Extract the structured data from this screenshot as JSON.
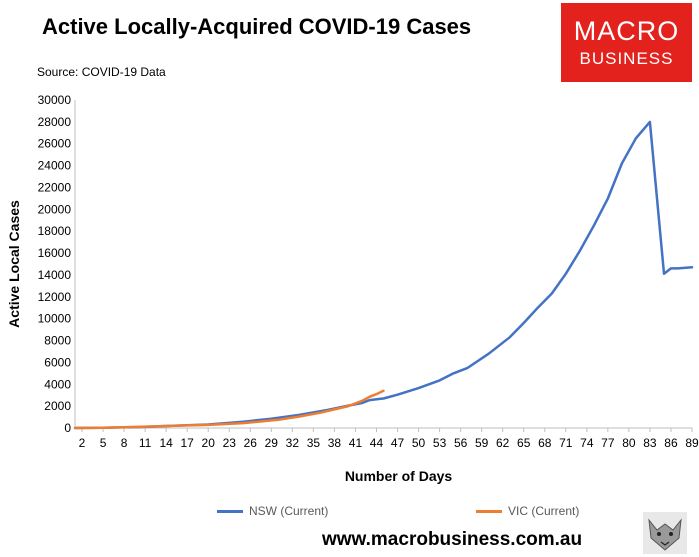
{
  "title": "Active Locally-Acquired COVID-19 Cases",
  "source": "Source: COVID-19 Data",
  "logo": {
    "line1": "MACRO",
    "line2": "BUSINESS",
    "color": "#e3221e"
  },
  "website": "www.macrobusiness.com.au",
  "chart_data": {
    "type": "line",
    "xlabel": "Number of Days",
    "ylabel": "Active Local Cases",
    "xlim": [
      1,
      89
    ],
    "ylim": [
      0,
      30000
    ],
    "y_ticks": [
      0,
      2000,
      4000,
      6000,
      8000,
      10000,
      12000,
      14000,
      16000,
      18000,
      20000,
      22000,
      24000,
      26000,
      28000,
      30000
    ],
    "x_ticks": [
      2,
      5,
      8,
      11,
      14,
      17,
      20,
      23,
      26,
      29,
      32,
      35,
      38,
      41,
      44,
      47,
      50,
      53,
      56,
      59,
      62,
      65,
      68,
      71,
      74,
      77,
      80,
      83,
      86,
      89
    ],
    "grid": "none",
    "legend_position": "bottom",
    "series": [
      {
        "name": "NSW (Current)",
        "color": "#4472c4",
        "x": [
          1,
          5,
          10,
          15,
          20,
          25,
          29,
          33,
          37,
          40,
          42,
          43,
          45,
          47,
          50,
          53,
          55,
          57,
          60,
          63,
          65,
          67,
          69,
          71,
          73,
          75,
          77,
          79,
          81,
          83,
          85,
          86,
          87,
          89
        ],
        "y": [
          0,
          20,
          80,
          200,
          320,
          580,
          850,
          1200,
          1650,
          2050,
          2300,
          2550,
          2700,
          3050,
          3650,
          4350,
          5000,
          5500,
          6800,
          8300,
          9600,
          11000,
          12300,
          14100,
          16200,
          18500,
          21000,
          24200,
          26500,
          28000,
          14100,
          14600,
          14600,
          14700
        ]
      },
      {
        "name": "VIC (Current)",
        "color": "#ed7d31",
        "x": [
          1,
          5,
          10,
          15,
          20,
          25,
          30,
          33,
          36,
          38,
          40,
          41,
          42,
          43,
          44,
          45
        ],
        "y": [
          0,
          30,
          100,
          200,
          280,
          450,
          750,
          1050,
          1400,
          1700,
          2000,
          2250,
          2500,
          2850,
          3100,
          3400
        ]
      }
    ]
  }
}
